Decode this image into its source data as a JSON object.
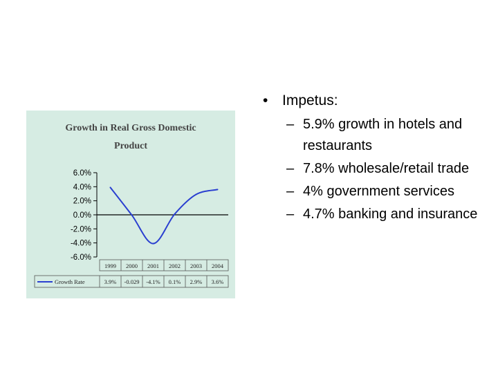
{
  "slide": {
    "bullet": "Impetus:",
    "sub_bullets": [
      "5.9% growth in hotels and restaurants",
      "7.8% wholesale/retail trade",
      "4% government services",
      "4.7% banking and insurance"
    ]
  },
  "chart_data": {
    "type": "line",
    "title": [
      "Growth in Real Gross Domestic",
      "Product"
    ],
    "x": [
      "1999",
      "2000",
      "2001",
      "2002",
      "2003",
      "2004"
    ],
    "series": [
      {
        "name": "Growth Rate",
        "values": [
          3.9,
          -0.029,
          -4.1,
          0.1,
          2.9,
          3.6
        ],
        "value_labels": [
          "3.9%",
          "-0.029",
          "-4.1%",
          "0.1%",
          "2.9%",
          "3.6%"
        ],
        "color": "#2a3fd0"
      }
    ],
    "yticks": [
      "6.0%",
      "4.0%",
      "2.0%",
      "0.0%",
      "-2.0%",
      "-4.0%",
      "-6.0%"
    ],
    "ylim": [
      -6,
      6
    ],
    "grid": false,
    "background": "#d6ece3",
    "data_table": true
  }
}
